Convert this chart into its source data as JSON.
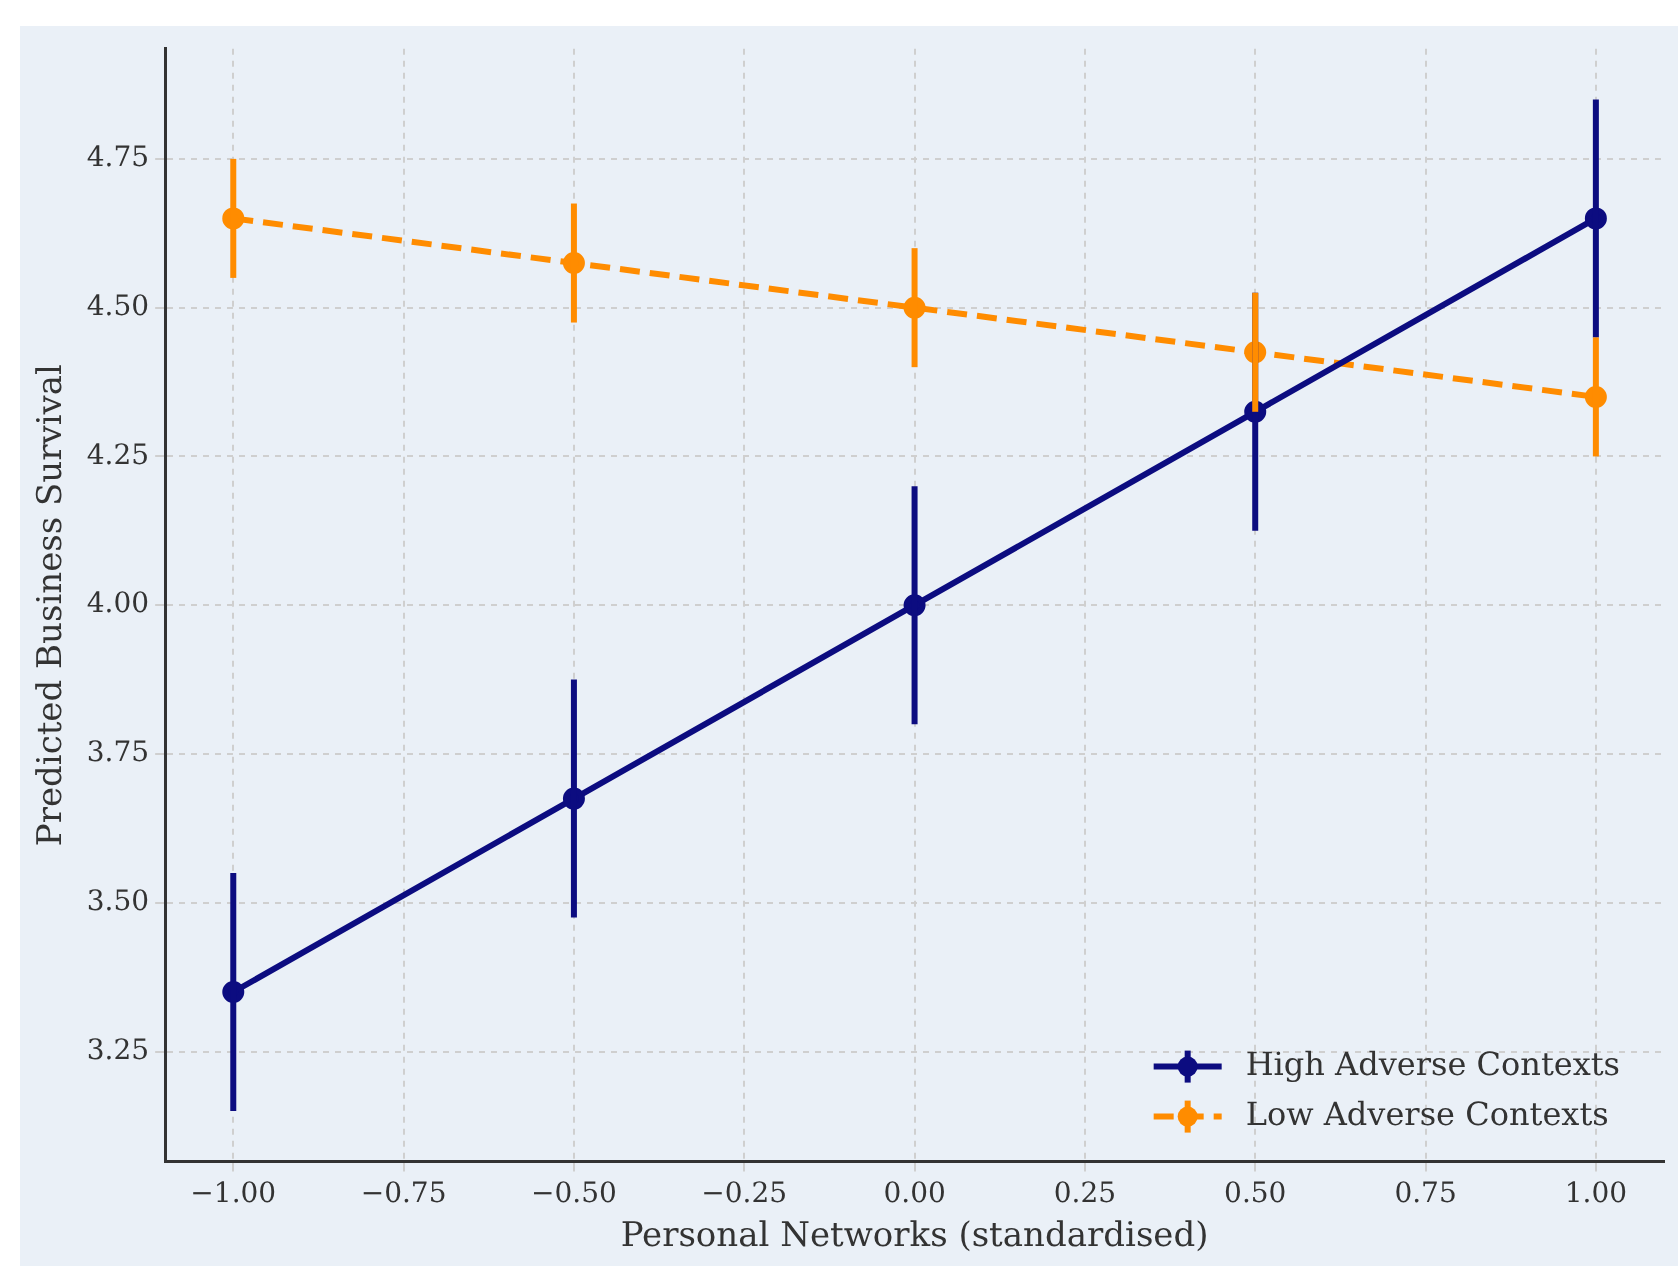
{
  "chart_data": {
    "type": "line",
    "xlabel": "Personal Networks (standardised)",
    "ylabel": "Predicted Business Survival",
    "x": [
      -1,
      -0.5,
      0,
      0.5,
      1
    ],
    "series": [
      {
        "name": "High Adverse Contexts",
        "color": "#0c0c80",
        "values": [
          3.35,
          3.675,
          4.0,
          4.325,
          4.65
        ],
        "errors": [
          0.2,
          0.2,
          0.2,
          0.2,
          0.2
        ],
        "line_style": "solid"
      },
      {
        "name": "Low Adverse Contexts",
        "color": "#ff8c00",
        "values": [
          4.65,
          4.575,
          4.5,
          4.425,
          4.35
        ],
        "errors": [
          0.1,
          0.1,
          0.1,
          0.1,
          0.1
        ],
        "line_style": "dashed"
      }
    ],
    "xlim": [
      -1.1,
      1.1
    ],
    "xticks": [
      {
        "value": -1,
        "label": "−1.00"
      },
      {
        "value": -0.75,
        "label": "−0.75"
      },
      {
        "value": -0.5,
        "label": "−0.50"
      },
      {
        "value": -0.25,
        "label": "−0.25"
      },
      {
        "value": 0,
        "label": "0.00"
      },
      {
        "value": 0.25,
        "label": "0.25"
      },
      {
        "value": 0.5,
        "label": "0.50"
      },
      {
        "value": 0.75,
        "label": "0.75"
      },
      {
        "value": 1,
        "label": "1.00"
      }
    ],
    "ylim": [
      3.065,
      4.935
    ],
    "yticks": [
      {
        "value": 3.25,
        "label": "3.25"
      },
      {
        "value": 3.5,
        "label": "3.50"
      },
      {
        "value": 3.75,
        "label": "3.75"
      },
      {
        "value": 4,
        "label": "4.00"
      },
      {
        "value": 4.25,
        "label": "4.25"
      },
      {
        "value": 4.5,
        "label": "4.50"
      },
      {
        "value": 4.75,
        "label": "4.75"
      }
    ],
    "grid": true,
    "legend": "bottom right",
    "marker": "circle"
  }
}
